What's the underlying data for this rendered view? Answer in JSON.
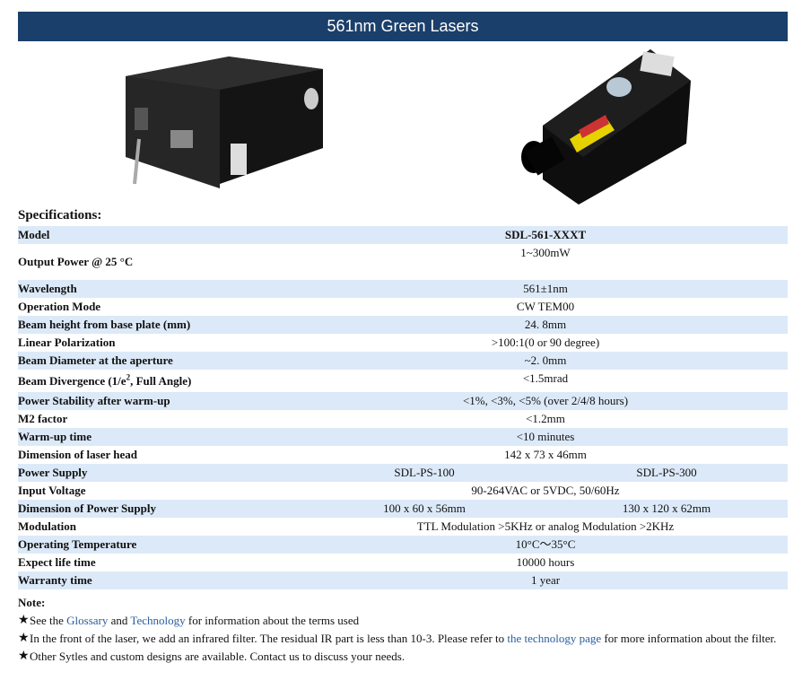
{
  "header": {
    "title": "561nm Green Lasers"
  },
  "images": [
    {
      "alt": "power-supply"
    },
    {
      "alt": "laser-head"
    }
  ],
  "specs_title": "Specifications:",
  "rows": [
    {
      "label": "Model",
      "value": "SDL-561-XXXT"
    },
    {
      "label": "Output Power @ 25 °C",
      "value": "1~300mW"
    },
    {
      "label": "Wavelength",
      "value": "561±1nm"
    },
    {
      "label": "Operation Mode",
      "value": "CW TEM00"
    },
    {
      "label": "Beam height from base plate (mm)",
      "value": "24. 8mm"
    },
    {
      "label": "Linear Polarization",
      "value": ">100:1(0 or 90 degree)"
    },
    {
      "label": "Beam Diameter at the aperture",
      "value": "~2. 0mm"
    },
    {
      "label_pre": "Beam Divergence (1/e",
      "label_sup": "2",
      "label_post": ", Full Angle)",
      "value": "<1.5mrad"
    },
    {
      "label": "Power Stability after warm-up",
      "value": "<1%, <3%, <5% (over 2/4/8 hours)"
    },
    {
      "label": "M2 factor",
      "value": "<1.2mm"
    },
    {
      "label": "Warm-up time",
      "value": "<10 minutes"
    },
    {
      "label": "Dimension of laser head",
      "value": "142 x 73 x 46mm"
    },
    {
      "label": "Power Supply",
      "values": [
        "SDL-PS-100",
        "SDL-PS-300"
      ]
    },
    {
      "label": "Input Voltage",
      "value": "90-264VAC or 5VDC, 50/60Hz"
    },
    {
      "label": "Dimension of Power Supply",
      "values": [
        "100 x 60 x 56mm",
        "130 x 120 x 62mm"
      ]
    },
    {
      "label": "Modulation",
      "value": "TTL Modulation >5KHz or analog Modulation >2KHz"
    },
    {
      "label": "Operating Temperature",
      "value": "10°C～35°C"
    },
    {
      "label": "Expect life time",
      "value": "10000 hours"
    },
    {
      "label": "Warranty time",
      "value": "1 year"
    }
  ],
  "notes": {
    "title": "Note:",
    "star": "★",
    "n1": {
      "pre": "See the ",
      "link1": "Glossary",
      "mid": " and ",
      "link2": "Technology",
      "post": " for information about the terms used"
    },
    "n2": {
      "pre": "In the front of the laser, we add an infrared filter. The residual IR part is less than 10-3. Please refer to ",
      "link": "the technology page",
      "post": " for more information about the filter."
    },
    "n3": {
      "text": "Other Sytles and custom designs are available. Contact us to discuss your needs."
    }
  },
  "colors": {
    "header": "#1a3f6b",
    "stripe": "#dce9f8",
    "link": "#2a5d9f"
  }
}
